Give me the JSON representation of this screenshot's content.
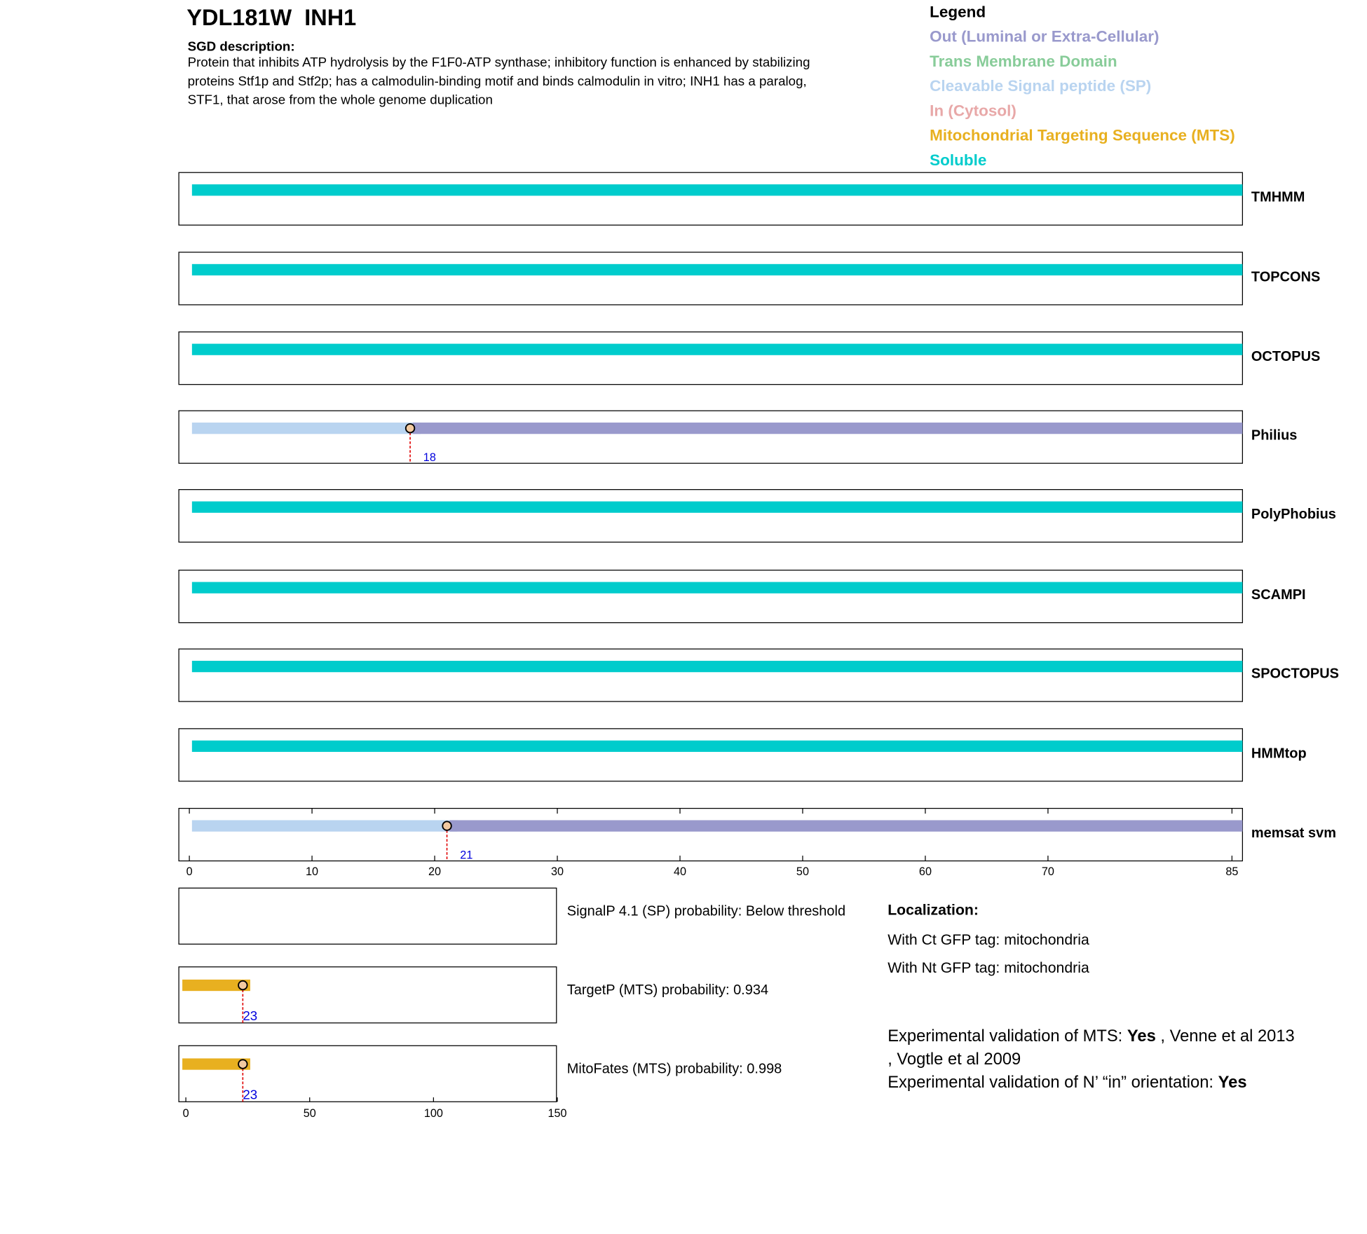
{
  "header": {
    "id_name": "YDL181W  INH1",
    "sgd_label": "SGD description:",
    "description": [
      "Protein that inhibits ATP hydrolysis by the F1F0-ATP synthase; inhibitory function is enhanced by stabilizing",
      "proteins Stf1p and Stf2p; has a calmodulin-binding motif and binds calmodulin in vitro; INH1 has a paralog,",
      "STF1, that arose from the whole genome duplication"
    ]
  },
  "legend": {
    "title": "Legend",
    "items": [
      {
        "label": "Out (Luminal or Extra-Cellular)",
        "color": "#9999cc"
      },
      {
        "label": "Trans Membrane Domain",
        "color": "#88cc99"
      },
      {
        "label": "Cleavable Signal peptide (SP)",
        "color": "#b9d4f0"
      },
      {
        "label": "In (Cytosol)",
        "color": "#e8a8a8"
      },
      {
        "label": "Mitochondrial Targeting Sequence (MTS)",
        "color": "#e8b020"
      },
      {
        "label": "Soluble",
        "color": "#00cccc"
      }
    ]
  },
  "topology": {
    "xlim": [
      0,
      85
    ],
    "xticks": [
      0,
      10,
      20,
      30,
      40,
      50,
      60,
      70,
      85
    ],
    "tracks": [
      {
        "name": "TMHMM",
        "segments": [
          {
            "start": 0,
            "end": 85,
            "color": "#00cccc"
          }
        ]
      },
      {
        "name": "TOPCONS",
        "segments": [
          {
            "start": 0,
            "end": 85,
            "color": "#00cccc"
          }
        ]
      },
      {
        "name": "OCTOPUS",
        "segments": [
          {
            "start": 0,
            "end": 85,
            "color": "#00cccc"
          }
        ]
      },
      {
        "name": "Philius",
        "segments": [
          {
            "start": 0,
            "end": 18,
            "color": "#b9d4f0"
          },
          {
            "start": 18,
            "end": 85,
            "color": "#9999cc"
          }
        ],
        "cleavage": 18
      },
      {
        "name": "PolyPhobius",
        "segments": [
          {
            "start": 0,
            "end": 85,
            "color": "#00cccc"
          }
        ]
      },
      {
        "name": "SCAMPI",
        "segments": [
          {
            "start": 0,
            "end": 85,
            "color": "#00cccc"
          }
        ]
      },
      {
        "name": "SPOCTOPUS",
        "segments": [
          {
            "start": 0,
            "end": 85,
            "color": "#00cccc"
          }
        ]
      },
      {
        "name": "HMMtop",
        "segments": [
          {
            "start": 0,
            "end": 85,
            "color": "#00cccc"
          }
        ]
      },
      {
        "name": "memsat svm",
        "segments": [
          {
            "start": 0,
            "end": 21,
            "color": "#b9d4f0"
          },
          {
            "start": 21,
            "end": 85,
            "color": "#9999cc"
          }
        ],
        "cleavage": 21
      }
    ]
  },
  "targeting": {
    "xlim": [
      0,
      150
    ],
    "xticks": [
      0,
      50,
      100,
      150
    ],
    "panels": [
      {
        "text": "SignalP 4.1 (SP) probability: Below threshold",
        "segments": []
      },
      {
        "text": "TargetP (MTS) probability: 0.934",
        "segments": [
          {
            "start": 0,
            "end": 26,
            "color": "#e8b020"
          }
        ],
        "cleavage": 23
      },
      {
        "text": "MitoFates (MTS) probability: 0.998",
        "segments": [
          {
            "start": 0,
            "end": 26,
            "color": "#e8b020"
          }
        ],
        "cleavage": 23
      }
    ]
  },
  "localization": {
    "title": "Localization:",
    "lines": [
      "With Ct GFP tag: mitochondria",
      "With Nt GFP tag: mitochondria"
    ]
  },
  "validation": [
    [
      {
        "text": "Experimental validation of MTS: ",
        "bold": false
      },
      {
        "text": "Yes",
        "bold": true
      },
      {
        "text": " , Venne et al 2013",
        "bold": false
      }
    ],
    [
      {
        "text": ", Vogtle et al 2009",
        "bold": false
      }
    ],
    [
      {
        "text": "Experimental validation of N’ “in” orientation: ",
        "bold": false
      },
      {
        "text": "Yes",
        "bold": true
      }
    ]
  ]
}
